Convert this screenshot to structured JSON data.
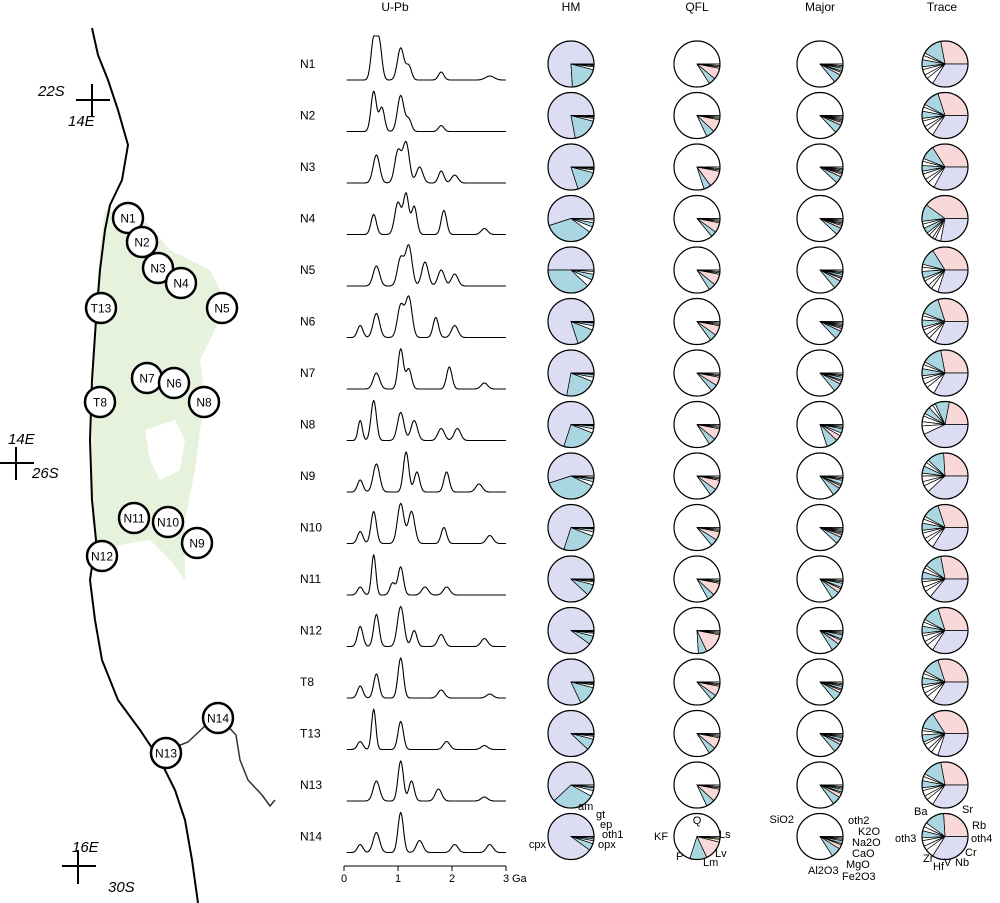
{
  "colors": {
    "shade": "#e6f2dc",
    "lav": "#dcdcf3",
    "blue": "#a9d6e0",
    "pink": "#f8d8d8",
    "yellow": "#f5edc5",
    "line": "#000000"
  },
  "map": {
    "coords": [
      {
        "lat": "22S",
        "lon": "14E"
      },
      {
        "lat": "26S",
        "lon": "14E"
      },
      {
        "lat": "30S",
        "lon": "16E"
      }
    ],
    "sites": [
      "N1",
      "N2",
      "N3",
      "N4",
      "N5",
      "T13",
      "N7",
      "N6",
      "T8",
      "N8",
      "N11",
      "N10",
      "N9",
      "N12",
      "N14",
      "N13"
    ]
  },
  "chart_data": {
    "type": "table",
    "columns": [
      "U-Pb",
      "HM",
      "QFL",
      "Major",
      "Trace"
    ],
    "samples": [
      "N1",
      "N2",
      "N3",
      "N4",
      "N5",
      "N6",
      "N7",
      "N8",
      "N9",
      "N10",
      "N11",
      "N12",
      "T8",
      "T13",
      "N13",
      "N14"
    ],
    "upb_axis": {
      "ticks": [
        "0",
        "1",
        "2",
        "3"
      ],
      "unit": "Ga",
      "xlim": [
        0,
        3
      ]
    },
    "hm_components": [
      "cpx",
      "am",
      "gt",
      "ep",
      "oth1",
      "opx"
    ],
    "qfl_components": [
      "Q",
      "KF",
      "P",
      "Lm",
      "Lv",
      "Ls"
    ],
    "major_components": [
      "SiO2",
      "Al2O3",
      "Fe2O3",
      "MgO",
      "CaO",
      "Na2O",
      "K2O",
      "oth2"
    ],
    "trace_components": [
      "Ba",
      "Sr",
      "Rb",
      "oth4",
      "Cr",
      "Nb",
      "V",
      "Hf",
      "Zr",
      "oth3"
    ],
    "hm": [
      [
        0.76,
        0.2,
        0.02,
        0.01,
        0.005,
        0.005
      ],
      [
        0.78,
        0.18,
        0.02,
        0.01,
        0.005,
        0.005
      ],
      [
        0.8,
        0.16,
        0.02,
        0.01,
        0.005,
        0.005
      ],
      [
        0.55,
        0.35,
        0.04,
        0.03,
        0.02,
        0.01
      ],
      [
        0.5,
        0.38,
        0.05,
        0.04,
        0.02,
        0.01
      ],
      [
        0.8,
        0.14,
        0.03,
        0.02,
        0.005,
        0.005
      ],
      [
        0.72,
        0.22,
        0.03,
        0.02,
        0.005,
        0.005
      ],
      [
        0.7,
        0.24,
        0.03,
        0.02,
        0.005,
        0.005
      ],
      [
        0.55,
        0.38,
        0.03,
        0.02,
        0.01,
        0.01
      ],
      [
        0.7,
        0.24,
        0.03,
        0.02,
        0.005,
        0.005
      ],
      [
        0.88,
        0.08,
        0.02,
        0.01,
        0.005,
        0.005
      ],
      [
        0.9,
        0.06,
        0.02,
        0.01,
        0.005,
        0.005
      ],
      [
        0.82,
        0.14,
        0.02,
        0.01,
        0.005,
        0.005
      ],
      [
        0.88,
        0.08,
        0.02,
        0.01,
        0.005,
        0.005
      ],
      [
        0.62,
        0.3,
        0.04,
        0.02,
        0.01,
        0.01
      ],
      [
        0.9,
        0.05,
        0.02,
        0.015,
        0.01,
        0.005
      ]
    ],
    "qfl": [
      [
        0.84,
        0.05,
        0.08,
        0.01,
        0.01,
        0.01
      ],
      [
        0.82,
        0.06,
        0.09,
        0.01,
        0.01,
        0.01
      ],
      [
        0.8,
        0.05,
        0.12,
        0.01,
        0.01,
        0.01
      ],
      [
        0.86,
        0.04,
        0.07,
        0.01,
        0.01,
        0.01
      ],
      [
        0.84,
        0.05,
        0.08,
        0.01,
        0.01,
        0.01
      ],
      [
        0.85,
        0.05,
        0.07,
        0.01,
        0.01,
        0.01
      ],
      [
        0.86,
        0.05,
        0.06,
        0.01,
        0.01,
        0.01
      ],
      [
        0.84,
        0.05,
        0.08,
        0.01,
        0.01,
        0.01
      ],
      [
        0.85,
        0.05,
        0.07,
        0.01,
        0.01,
        0.01
      ],
      [
        0.86,
        0.05,
        0.06,
        0.01,
        0.01,
        0.01
      ],
      [
        0.83,
        0.05,
        0.09,
        0.01,
        0.01,
        0.01
      ],
      [
        0.76,
        0.06,
        0.15,
        0.01,
        0.01,
        0.01
      ],
      [
        0.86,
        0.04,
        0.07,
        0.01,
        0.01,
        0.01
      ],
      [
        0.84,
        0.05,
        0.08,
        0.01,
        0.01,
        0.01
      ],
      [
        0.82,
        0.06,
        0.09,
        0.01,
        0.01,
        0.01
      ],
      [
        0.7,
        0.12,
        0.14,
        0.02,
        0.01,
        0.01
      ]
    ],
    "major": [
      [
        0.86,
        0.06,
        0.02,
        0.01,
        0.02,
        0.01,
        0.01,
        0.01
      ],
      [
        0.87,
        0.06,
        0.02,
        0.01,
        0.01,
        0.01,
        0.01,
        0.01
      ],
      [
        0.88,
        0.05,
        0.02,
        0.01,
        0.01,
        0.01,
        0.01,
        0.01
      ],
      [
        0.88,
        0.05,
        0.02,
        0.01,
        0.01,
        0.01,
        0.01,
        0.01
      ],
      [
        0.86,
        0.06,
        0.02,
        0.01,
        0.02,
        0.01,
        0.01,
        0.01
      ],
      [
        0.87,
        0.06,
        0.02,
        0.01,
        0.01,
        0.01,
        0.01,
        0.01
      ],
      [
        0.86,
        0.06,
        0.02,
        0.01,
        0.02,
        0.01,
        0.01,
        0.01
      ],
      [
        0.8,
        0.08,
        0.04,
        0.02,
        0.03,
        0.01,
        0.01,
        0.01
      ],
      [
        0.85,
        0.06,
        0.02,
        0.01,
        0.03,
        0.01,
        0.01,
        0.01
      ],
      [
        0.88,
        0.05,
        0.02,
        0.01,
        0.01,
        0.01,
        0.01,
        0.01
      ],
      [
        0.84,
        0.06,
        0.03,
        0.01,
        0.03,
        0.01,
        0.01,
        0.01
      ],
      [
        0.84,
        0.06,
        0.03,
        0.01,
        0.03,
        0.01,
        0.01,
        0.01
      ],
      [
        0.86,
        0.06,
        0.02,
        0.01,
        0.02,
        0.01,
        0.01,
        0.01
      ],
      [
        0.86,
        0.06,
        0.02,
        0.01,
        0.02,
        0.01,
        0.01,
        0.01
      ],
      [
        0.85,
        0.06,
        0.03,
        0.01,
        0.02,
        0.01,
        0.01,
        0.01
      ],
      [
        0.84,
        0.07,
        0.03,
        0.01,
        0.02,
        0.01,
        0.01,
        0.01
      ]
    ],
    "trace": [
      [
        0.28,
        0.14,
        0.02,
        0.03,
        0.05,
        0.02,
        0.04,
        0.03,
        0.05,
        0.34
      ],
      [
        0.3,
        0.12,
        0.02,
        0.03,
        0.05,
        0.02,
        0.04,
        0.03,
        0.05,
        0.34
      ],
      [
        0.34,
        0.1,
        0.02,
        0.03,
        0.04,
        0.02,
        0.04,
        0.03,
        0.05,
        0.33
      ],
      [
        0.4,
        0.12,
        0.02,
        0.03,
        0.04,
        0.02,
        0.03,
        0.02,
        0.04,
        0.28
      ],
      [
        0.34,
        0.12,
        0.02,
        0.03,
        0.05,
        0.02,
        0.04,
        0.03,
        0.05,
        0.3
      ],
      [
        0.3,
        0.14,
        0.02,
        0.03,
        0.05,
        0.02,
        0.04,
        0.03,
        0.05,
        0.32
      ],
      [
        0.28,
        0.14,
        0.02,
        0.03,
        0.05,
        0.02,
        0.04,
        0.03,
        0.06,
        0.33
      ],
      [
        0.22,
        0.1,
        0.02,
        0.03,
        0.05,
        0.02,
        0.04,
        0.03,
        0.06,
        0.43
      ],
      [
        0.26,
        0.12,
        0.02,
        0.03,
        0.05,
        0.02,
        0.04,
        0.03,
        0.05,
        0.38
      ],
      [
        0.3,
        0.12,
        0.02,
        0.03,
        0.05,
        0.02,
        0.04,
        0.03,
        0.05,
        0.34
      ],
      [
        0.28,
        0.12,
        0.02,
        0.03,
        0.05,
        0.02,
        0.04,
        0.03,
        0.05,
        0.36
      ],
      [
        0.3,
        0.12,
        0.02,
        0.03,
        0.05,
        0.02,
        0.04,
        0.03,
        0.05,
        0.34
      ],
      [
        0.3,
        0.12,
        0.02,
        0.03,
        0.05,
        0.02,
        0.04,
        0.03,
        0.05,
        0.34
      ],
      [
        0.34,
        0.12,
        0.02,
        0.03,
        0.05,
        0.02,
        0.04,
        0.03,
        0.05,
        0.3
      ],
      [
        0.28,
        0.14,
        0.02,
        0.03,
        0.05,
        0.02,
        0.04,
        0.03,
        0.05,
        0.34
      ],
      [
        0.26,
        0.14,
        0.03,
        0.03,
        0.05,
        0.02,
        0.04,
        0.03,
        0.06,
        0.34
      ]
    ],
    "upb_peaks": [
      [
        [
          0.55,
          1.0,
          0.05
        ],
        [
          0.65,
          0.95,
          0.05
        ],
        [
          1.05,
          0.8,
          0.06
        ],
        [
          1.2,
          0.35,
          0.05
        ],
        [
          1.8,
          0.2,
          0.05
        ],
        [
          2.7,
          0.1,
          0.08
        ]
      ],
      [
        [
          0.55,
          1.0,
          0.05
        ],
        [
          0.7,
          0.6,
          0.05
        ],
        [
          1.05,
          0.9,
          0.06
        ],
        [
          1.2,
          0.3,
          0.05
        ],
        [
          1.8,
          0.15,
          0.05
        ]
      ],
      [
        [
          0.6,
          0.7,
          0.06
        ],
        [
          1.0,
          0.8,
          0.06
        ],
        [
          1.15,
          1.0,
          0.06
        ],
        [
          1.4,
          0.4,
          0.06
        ],
        [
          1.8,
          0.3,
          0.05
        ],
        [
          2.05,
          0.2,
          0.06
        ]
      ],
      [
        [
          0.55,
          0.5,
          0.05
        ],
        [
          1.0,
          0.8,
          0.06
        ],
        [
          1.15,
          1.0,
          0.05
        ],
        [
          1.3,
          0.7,
          0.05
        ],
        [
          1.85,
          0.6,
          0.05
        ],
        [
          2.6,
          0.15,
          0.06
        ]
      ],
      [
        [
          0.6,
          0.5,
          0.06
        ],
        [
          1.05,
          0.7,
          0.06
        ],
        [
          1.2,
          1.0,
          0.06
        ],
        [
          1.5,
          0.6,
          0.06
        ],
        [
          1.8,
          0.4,
          0.06
        ],
        [
          2.05,
          0.3,
          0.06
        ]
      ],
      [
        [
          0.3,
          0.3,
          0.05
        ],
        [
          0.6,
          0.6,
          0.06
        ],
        [
          1.05,
          0.8,
          0.06
        ],
        [
          1.2,
          1.0,
          0.06
        ],
        [
          1.7,
          0.5,
          0.05
        ],
        [
          2.05,
          0.3,
          0.06
        ]
      ],
      [
        [
          0.6,
          0.4,
          0.06
        ],
        [
          1.05,
          1.0,
          0.05
        ],
        [
          1.2,
          0.5,
          0.05
        ],
        [
          1.95,
          0.55,
          0.05
        ],
        [
          2.6,
          0.15,
          0.06
        ]
      ],
      [
        [
          0.3,
          0.5,
          0.04
        ],
        [
          0.55,
          1.0,
          0.05
        ],
        [
          1.05,
          0.7,
          0.06
        ],
        [
          1.3,
          0.5,
          0.06
        ],
        [
          1.8,
          0.3,
          0.06
        ],
        [
          2.1,
          0.3,
          0.06
        ]
      ],
      [
        [
          0.3,
          0.3,
          0.05
        ],
        [
          0.6,
          0.7,
          0.06
        ],
        [
          1.15,
          1.0,
          0.05
        ],
        [
          1.35,
          0.5,
          0.05
        ],
        [
          1.9,
          0.5,
          0.05
        ],
        [
          2.5,
          0.2,
          0.06
        ]
      ],
      [
        [
          0.3,
          0.3,
          0.05
        ],
        [
          0.55,
          0.8,
          0.05
        ],
        [
          1.05,
          1.0,
          0.06
        ],
        [
          1.25,
          0.8,
          0.06
        ],
        [
          1.85,
          0.4,
          0.05
        ],
        [
          2.7,
          0.2,
          0.06
        ]
      ],
      [
        [
          0.3,
          0.2,
          0.05
        ],
        [
          0.55,
          1.0,
          0.04
        ],
        [
          0.9,
          0.3,
          0.05
        ],
        [
          1.05,
          0.7,
          0.05
        ],
        [
          1.5,
          0.2,
          0.06
        ],
        [
          1.9,
          0.2,
          0.06
        ]
      ],
      [
        [
          0.3,
          0.5,
          0.05
        ],
        [
          0.6,
          0.8,
          0.05
        ],
        [
          1.05,
          1.0,
          0.06
        ],
        [
          1.3,
          0.4,
          0.05
        ],
        [
          1.8,
          0.3,
          0.06
        ],
        [
          2.6,
          0.2,
          0.06
        ]
      ],
      [
        [
          0.3,
          0.3,
          0.05
        ],
        [
          0.6,
          0.6,
          0.05
        ],
        [
          1.05,
          1.0,
          0.05
        ],
        [
          1.8,
          0.2,
          0.06
        ],
        [
          2.7,
          0.1,
          0.06
        ]
      ],
      [
        [
          0.3,
          0.2,
          0.05
        ],
        [
          0.55,
          1.0,
          0.04
        ],
        [
          1.05,
          0.7,
          0.05
        ],
        [
          1.9,
          0.2,
          0.06
        ],
        [
          2.6,
          0.1,
          0.06
        ]
      ],
      [
        [
          0.6,
          0.5,
          0.06
        ],
        [
          1.05,
          1.0,
          0.05
        ],
        [
          1.25,
          0.5,
          0.05
        ],
        [
          1.75,
          0.3,
          0.06
        ],
        [
          2.6,
          0.1,
          0.06
        ]
      ],
      [
        [
          0.3,
          0.2,
          0.05
        ],
        [
          0.6,
          0.5,
          0.06
        ],
        [
          1.05,
          1.0,
          0.05
        ],
        [
          1.4,
          0.3,
          0.06
        ],
        [
          2.05,
          0.2,
          0.06
        ],
        [
          2.7,
          0.2,
          0.06
        ]
      ]
    ]
  }
}
